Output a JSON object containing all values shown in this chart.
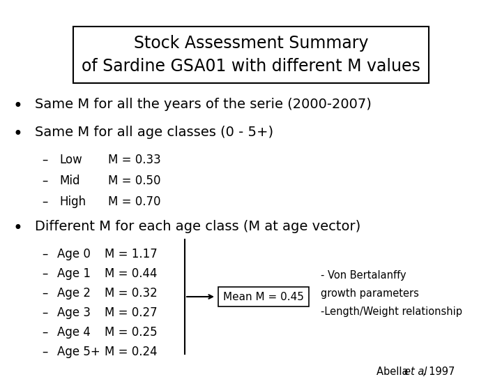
{
  "title_line1": "Stock Assessment Summary",
  "title_line2": "of Sardine GSA01 with different M values",
  "bg_color": "#ffffff",
  "bullet1": "Same M for all the years of the serie (2000-2007)",
  "bullet2": "Same M for all age classes (0 - 5+)",
  "sub2": [
    [
      "Low",
      "M = 0.33"
    ],
    [
      "Mid",
      "M = 0.50"
    ],
    [
      "High",
      "M = 0.70"
    ]
  ],
  "bullet3": "Different M for each age class (M at age vector)",
  "sub3": [
    [
      "Age 0",
      "M = 1.17"
    ],
    [
      "Age 1",
      "M = 0.44"
    ],
    [
      "Age 2",
      "M = 0.32"
    ],
    [
      "Age 3",
      "M = 0.27"
    ],
    [
      "Age 4",
      "M = 0.25"
    ],
    [
      "Age 5+",
      "M = 0.24"
    ]
  ],
  "mean_box_text": "Mean M = 0.45",
  "side_notes": [
    "- Von Bertalanffy",
    "growth parameters",
    "-Length/Weight relationship"
  ],
  "citation_normal": "Abella ",
  "citation_italic": "et al",
  "citation_end": ", 1997",
  "title_fontsize": 17,
  "bullet_fontsize": 14,
  "sub_fontsize": 12,
  "mean_fontsize": 11,
  "side_fontsize": 10.5
}
